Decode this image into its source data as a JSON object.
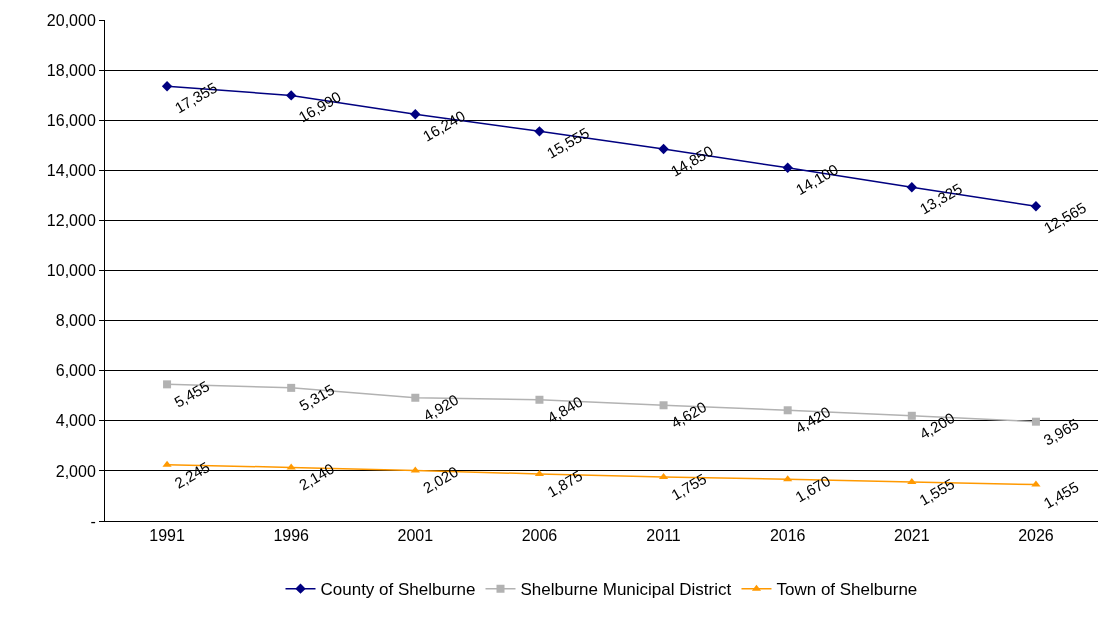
{
  "chart_data": {
    "type": "line",
    "categories": [
      "1991",
      "1996",
      "2001",
      "2006",
      "2011",
      "2016",
      "2021",
      "2026"
    ],
    "series": [
      {
        "name": "County of Shelburne",
        "color": "#000080",
        "marker": "diamond",
        "values": [
          17355,
          16990,
          16240,
          15555,
          14850,
          14100,
          13325,
          12565
        ],
        "value_labels": [
          "17,355",
          "16,990",
          "16,240",
          "15,555",
          "14,850",
          "14,100",
          "13,325",
          "12,565"
        ]
      },
      {
        "name": "Shelburne Municipal District",
        "color": "#b2b2b2",
        "marker": "square",
        "values": [
          5455,
          5315,
          4920,
          4840,
          4620,
          4420,
          4200,
          3965
        ],
        "value_labels": [
          "5,455",
          "5,315",
          "4,920",
          "4,840",
          "4,620",
          "4,420",
          "4,200",
          "3,965"
        ]
      },
      {
        "name": "Town of Shelburne",
        "color": "#ff9900",
        "marker": "triangle",
        "values": [
          2245,
          2140,
          2020,
          1875,
          1755,
          1670,
          1555,
          1455
        ],
        "value_labels": [
          "2,245",
          "2,140",
          "2,020",
          "1,875",
          "1,755",
          "1,670",
          "1,555",
          "1,455"
        ]
      }
    ],
    "ylim": [
      0,
      20000
    ],
    "yticks": [
      {
        "value": 0,
        "label": "-"
      },
      {
        "value": 2000,
        "label": "2,000"
      },
      {
        "value": 4000,
        "label": "4,000"
      },
      {
        "value": 6000,
        "label": "6,000"
      },
      {
        "value": 8000,
        "label": "8,000"
      },
      {
        "value": 10000,
        "label": "10,000"
      },
      {
        "value": 12000,
        "label": "12,000"
      },
      {
        "value": 14000,
        "label": "14,000"
      },
      {
        "value": 16000,
        "label": "16,000"
      },
      {
        "value": 18000,
        "label": "18,000"
      },
      {
        "value": 20000,
        "label": "20,000"
      }
    ],
    "grid": "y",
    "legend": "bottom",
    "line_style": "solid"
  }
}
